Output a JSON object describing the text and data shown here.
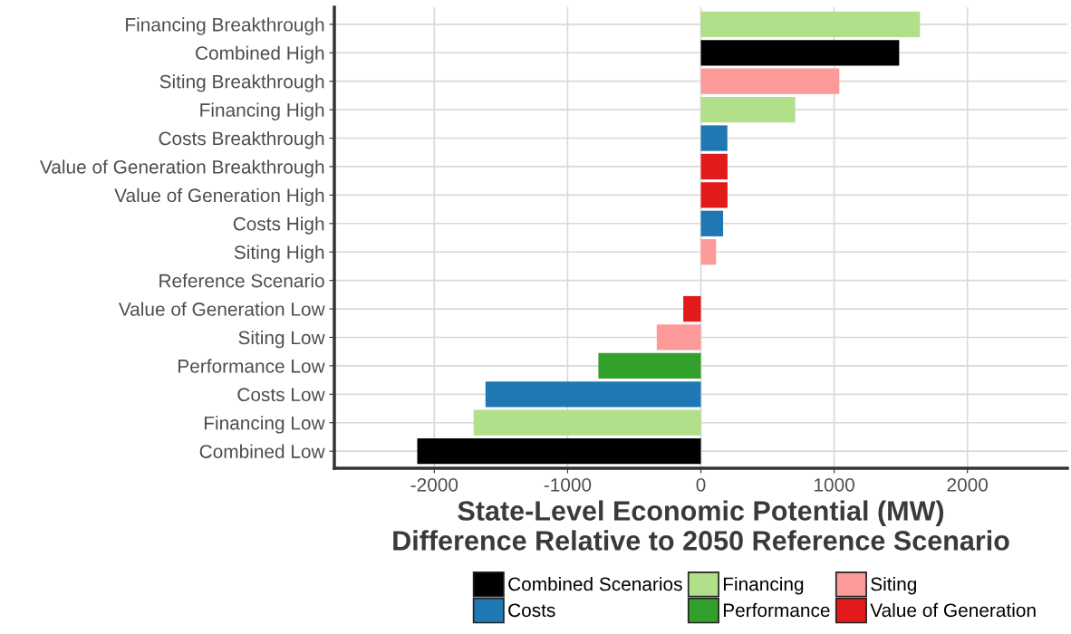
{
  "chart_data": {
    "type": "bar",
    "orientation": "horizontal",
    "xlabel": "State-Level Economic Potential (MW)\nDifference Relative to 2050 Reference Scenario",
    "categories": [
      "Financing Breakthrough",
      "Combined High",
      "Siting Breakthrough",
      "Financing High",
      "Costs Breakthrough",
      "Value of Generation Breakthrough",
      "Value of Generation High",
      "Costs High",
      "Siting High",
      "Reference Scenario",
      "Value of Generation Low",
      "Siting Low",
      "Performance Low",
      "Costs Low",
      "Financing Low",
      "Combined Low"
    ],
    "series": [
      {
        "name": "Combined Scenarios",
        "color": "#000000",
        "values": [
          null,
          1488,
          null,
          null,
          null,
          null,
          null,
          null,
          null,
          0,
          null,
          null,
          null,
          null,
          null,
          -2128
        ]
      },
      {
        "name": "Costs",
        "color": "#1f78b4",
        "values": [
          null,
          null,
          null,
          null,
          199,
          null,
          null,
          167,
          null,
          null,
          null,
          null,
          null,
          -1616,
          null,
          null
        ]
      },
      {
        "name": "Financing",
        "color": "#b2df8a",
        "values": [
          1644,
          null,
          null,
          708,
          null,
          null,
          null,
          null,
          null,
          null,
          null,
          null,
          null,
          null,
          -1705,
          null
        ]
      },
      {
        "name": "Performance",
        "color": "#33a02c",
        "values": [
          null,
          null,
          null,
          null,
          null,
          null,
          null,
          null,
          null,
          null,
          null,
          null,
          -769,
          null,
          null,
          null
        ]
      },
      {
        "name": "Siting",
        "color": "#fb9a99",
        "values": [
          null,
          null,
          1039,
          null,
          null,
          null,
          null,
          null,
          114,
          null,
          null,
          -331,
          null,
          null,
          null,
          null
        ]
      },
      {
        "name": "Value of Generation",
        "color": "#e31a1c",
        "values": [
          null,
          null,
          null,
          null,
          null,
          200,
          200,
          null,
          null,
          null,
          -132,
          null,
          null,
          null,
          null,
          null
        ]
      }
    ],
    "xlim": [
      -2750,
      2750
    ],
    "xticks": [
      -2000,
      -1000,
      0,
      1000,
      2000
    ],
    "grid": true,
    "legend": "bottom"
  }
}
